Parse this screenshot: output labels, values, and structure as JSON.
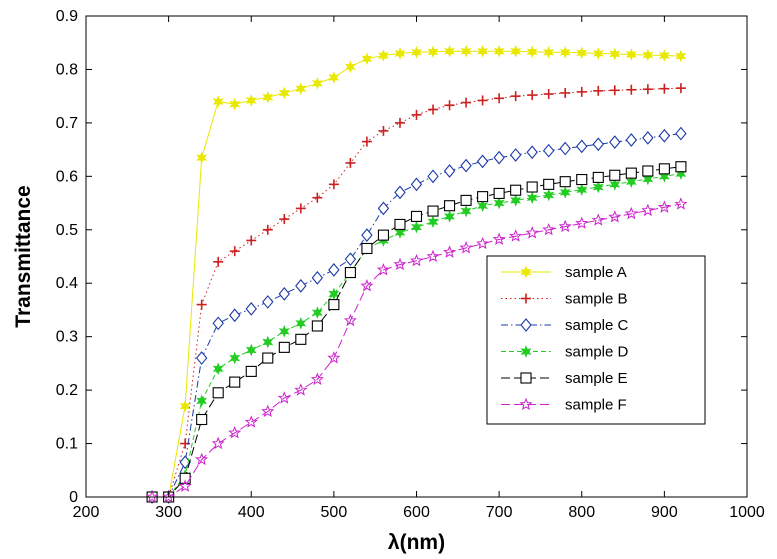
{
  "chart_data": {
    "type": "line",
    "title": "",
    "xlabel": "λ(nm)",
    "ylabel": "Transmittance",
    "xlim": [
      200,
      1000
    ],
    "ylim": [
      0,
      0.9
    ],
    "xticks": [
      200,
      300,
      400,
      500,
      600,
      700,
      800,
      900,
      1000
    ],
    "yticks": [
      0,
      0.1,
      0.2,
      0.3,
      0.4,
      0.5,
      0.6,
      0.7,
      0.8,
      0.9
    ],
    "xtick_labels": [
      "200",
      "300",
      "400",
      "500",
      "600",
      "700",
      "800",
      "900",
      "1000"
    ],
    "ytick_labels": [
      "0",
      "0.1",
      "0.2",
      "0.3",
      "0.4",
      "0.5",
      "0.6",
      "0.7",
      "0.8",
      "0.9"
    ],
    "grid": false,
    "legend_position": "right",
    "series": [
      {
        "name": "sample A",
        "color": "#e8e800",
        "marker": "star6",
        "dash": "solid",
        "x": [
          280,
          300,
          320,
          340,
          360,
          380,
          400,
          420,
          440,
          460,
          480,
          500,
          520,
          540,
          560,
          580,
          600,
          620,
          640,
          660,
          680,
          700,
          720,
          740,
          760,
          780,
          800,
          820,
          840,
          860,
          880,
          900,
          920
        ],
        "y": [
          0,
          0,
          0.17,
          0.635,
          0.74,
          0.735,
          0.742,
          0.748,
          0.756,
          0.764,
          0.774,
          0.785,
          0.805,
          0.82,
          0.826,
          0.83,
          0.832,
          0.833,
          0.834,
          0.834,
          0.834,
          0.834,
          0.834,
          0.833,
          0.832,
          0.832,
          0.831,
          0.83,
          0.829,
          0.828,
          0.827,
          0.826,
          0.825
        ]
      },
      {
        "name": "sample B",
        "color": "#cc2020",
        "marker": "plus",
        "dash": "dot",
        "x": [
          280,
          300,
          320,
          340,
          360,
          380,
          400,
          420,
          440,
          460,
          480,
          500,
          520,
          540,
          560,
          580,
          600,
          620,
          640,
          660,
          680,
          700,
          720,
          740,
          760,
          780,
          800,
          820,
          840,
          860,
          880,
          900,
          920
        ],
        "y": [
          0,
          0,
          0.1,
          0.36,
          0.44,
          0.46,
          0.48,
          0.5,
          0.52,
          0.54,
          0.56,
          0.585,
          0.625,
          0.665,
          0.685,
          0.7,
          0.715,
          0.725,
          0.733,
          0.738,
          0.742,
          0.746,
          0.75,
          0.752,
          0.754,
          0.756,
          0.758,
          0.76,
          0.761,
          0.762,
          0.763,
          0.764,
          0.765
        ]
      },
      {
        "name": "sample C",
        "color": "#1a3aa8",
        "marker": "diamond",
        "dash": "dashdot",
        "x": [
          280,
          300,
          320,
          340,
          360,
          380,
          400,
          420,
          440,
          460,
          480,
          500,
          520,
          540,
          560,
          580,
          600,
          620,
          640,
          660,
          680,
          700,
          720,
          740,
          760,
          780,
          800,
          820,
          840,
          860,
          880,
          900,
          920
        ],
        "y": [
          0,
          0,
          0.065,
          0.26,
          0.325,
          0.34,
          0.352,
          0.365,
          0.38,
          0.395,
          0.41,
          0.425,
          0.445,
          0.49,
          0.54,
          0.57,
          0.585,
          0.6,
          0.61,
          0.62,
          0.628,
          0.635,
          0.64,
          0.645,
          0.648,
          0.652,
          0.656,
          0.66,
          0.664,
          0.668,
          0.672,
          0.676,
          0.68
        ]
      },
      {
        "name": "sample D",
        "color": "#22cc22",
        "marker": "star6",
        "dash": "dash",
        "x": [
          280,
          300,
          320,
          340,
          360,
          380,
          400,
          420,
          440,
          460,
          480,
          500,
          520,
          540,
          560,
          580,
          600,
          620,
          640,
          660,
          680,
          700,
          720,
          740,
          760,
          780,
          800,
          820,
          840,
          860,
          880,
          900,
          920
        ],
        "y": [
          0,
          0,
          0.04,
          0.18,
          0.24,
          0.26,
          0.275,
          0.29,
          0.31,
          0.325,
          0.345,
          0.38,
          0.42,
          0.465,
          0.48,
          0.495,
          0.505,
          0.515,
          0.525,
          0.535,
          0.545,
          0.55,
          0.555,
          0.56,
          0.565,
          0.57,
          0.575,
          0.58,
          0.585,
          0.59,
          0.595,
          0.6,
          0.605
        ]
      },
      {
        "name": "sample E",
        "color": "#000000",
        "marker": "square",
        "dash": "longdash",
        "x": [
          280,
          300,
          320,
          340,
          360,
          380,
          400,
          420,
          440,
          460,
          480,
          500,
          520,
          540,
          560,
          580,
          600,
          620,
          640,
          660,
          680,
          700,
          720,
          740,
          760,
          780,
          800,
          820,
          840,
          860,
          880,
          900,
          920
        ],
        "y": [
          0,
          0,
          0.035,
          0.145,
          0.195,
          0.215,
          0.235,
          0.26,
          0.28,
          0.295,
          0.32,
          0.36,
          0.42,
          0.465,
          0.49,
          0.51,
          0.525,
          0.535,
          0.545,
          0.555,
          0.562,
          0.568,
          0.574,
          0.58,
          0.585,
          0.59,
          0.594,
          0.598,
          0.602,
          0.606,
          0.61,
          0.614,
          0.618
        ]
      },
      {
        "name": "sample F",
        "color": "#cc22cc",
        "marker": "star5",
        "dash": "longdash",
        "x": [
          280,
          300,
          320,
          340,
          360,
          380,
          400,
          420,
          440,
          460,
          480,
          500,
          520,
          540,
          560,
          580,
          600,
          620,
          640,
          660,
          680,
          700,
          720,
          740,
          760,
          780,
          800,
          820,
          840,
          860,
          880,
          900,
          920
        ],
        "y": [
          0,
          0,
          0.02,
          0.07,
          0.1,
          0.12,
          0.14,
          0.16,
          0.185,
          0.2,
          0.22,
          0.26,
          0.33,
          0.395,
          0.425,
          0.435,
          0.442,
          0.45,
          0.458,
          0.466,
          0.474,
          0.482,
          0.488,
          0.494,
          0.5,
          0.506,
          0.512,
          0.518,
          0.524,
          0.53,
          0.536,
          0.542,
          0.548
        ]
      }
    ]
  }
}
